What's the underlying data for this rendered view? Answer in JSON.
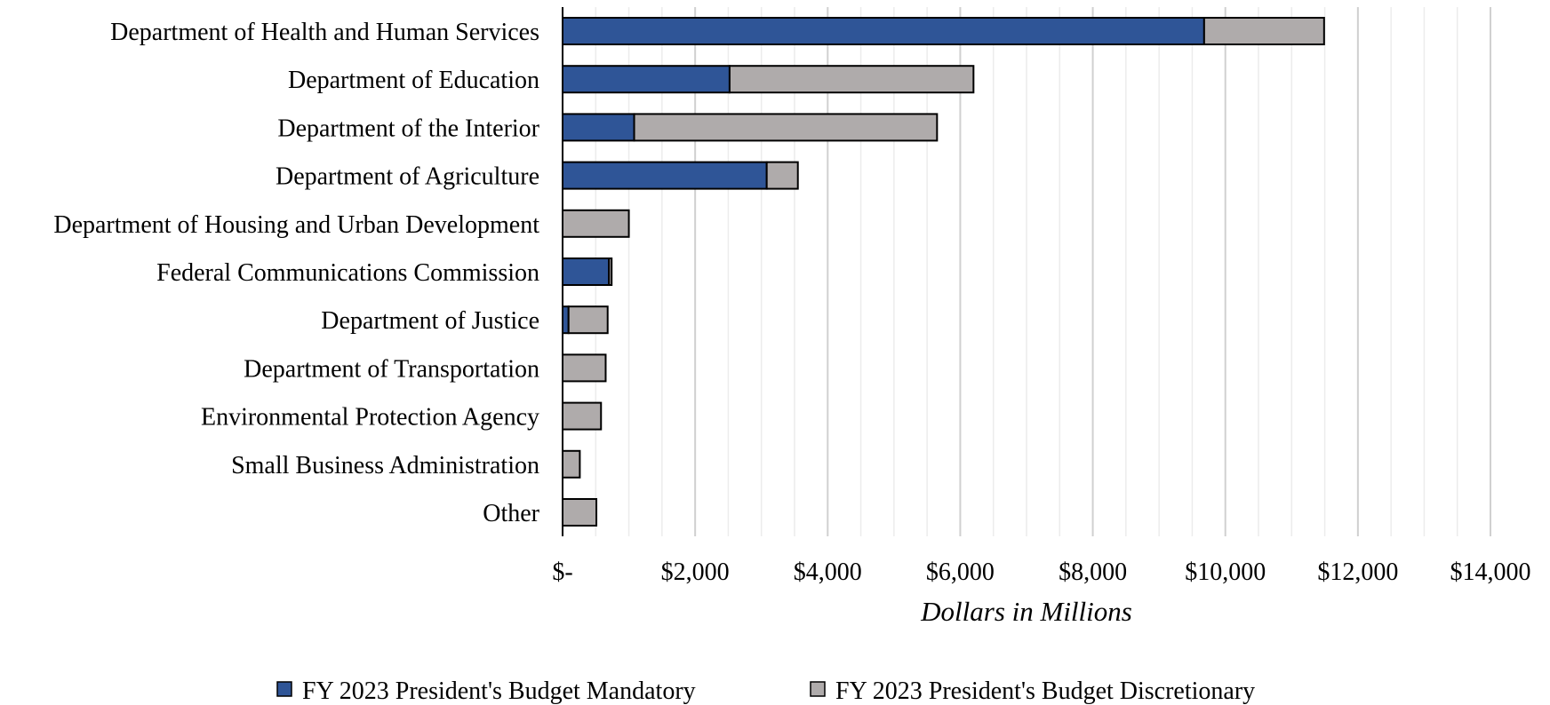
{
  "chart_data": {
    "type": "bar",
    "orientation": "horizontal",
    "stacked": true,
    "categories": [
      "Department of Health and Human Services",
      "Department of Education",
      "Department of the Interior",
      "Department of Agriculture",
      "Department of Housing and Urban Development",
      "Federal Communications Commission",
      "Department of Justice",
      "Department of Transportation",
      "Environmental Protection Agency",
      "Small Business Administration",
      "Other"
    ],
    "series": [
      {
        "name": "FY 2023 President's Budget Mandatory",
        "color": "#2f5597",
        "values": [
          9680,
          2520,
          1080,
          3080,
          0,
          700,
          90,
          0,
          0,
          0,
          0
        ]
      },
      {
        "name": "FY 2023 President's Budget Discretionary",
        "color": "#afabab",
        "values": [
          1810,
          3680,
          4570,
          470,
          1000,
          40,
          590,
          650,
          580,
          260,
          510
        ]
      }
    ],
    "xlabel": "Dollars in Millions",
    "ylabel": "",
    "xlim": [
      0,
      14000
    ],
    "x_ticks": [
      0,
      2000,
      4000,
      6000,
      8000,
      10000,
      12000,
      14000
    ],
    "x_tick_labels": [
      "$-",
      "$2,000",
      "$4,000",
      "$6,000",
      "$8,000",
      "$10,000",
      "$12,000",
      "$14,000"
    ],
    "grid": true,
    "legend_position": "bottom"
  }
}
